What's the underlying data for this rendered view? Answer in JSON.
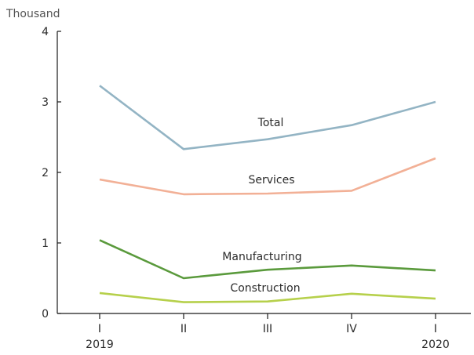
{
  "chart_data": {
    "type": "line",
    "unit_label": "Thousand",
    "ylim": [
      0,
      4
    ],
    "yticks": [
      "0",
      "1",
      "2",
      "3",
      "4"
    ],
    "categories": [
      "I",
      "II",
      "III",
      "IV",
      "I"
    ],
    "year_labels": [
      "2019",
      "",
      "",
      "",
      "2020"
    ],
    "grid": false,
    "legend": "none (series labelled directly on lines)",
    "series": [
      {
        "name": "Total",
        "color": "#93b4c4",
        "values": [
          3.23,
          2.33,
          2.47,
          2.67,
          3.0
        ]
      },
      {
        "name": "Services",
        "color": "#f2b096",
        "values": [
          1.9,
          1.69,
          1.7,
          1.74,
          2.2
        ]
      },
      {
        "name": "Manufacturing",
        "color": "#5a9a3c",
        "values": [
          1.04,
          0.5,
          0.62,
          0.68,
          0.61
        ]
      },
      {
        "name": "Construction",
        "color": "#b6d04b",
        "values": [
          0.29,
          0.16,
          0.17,
          0.28,
          0.21
        ]
      }
    ]
  }
}
